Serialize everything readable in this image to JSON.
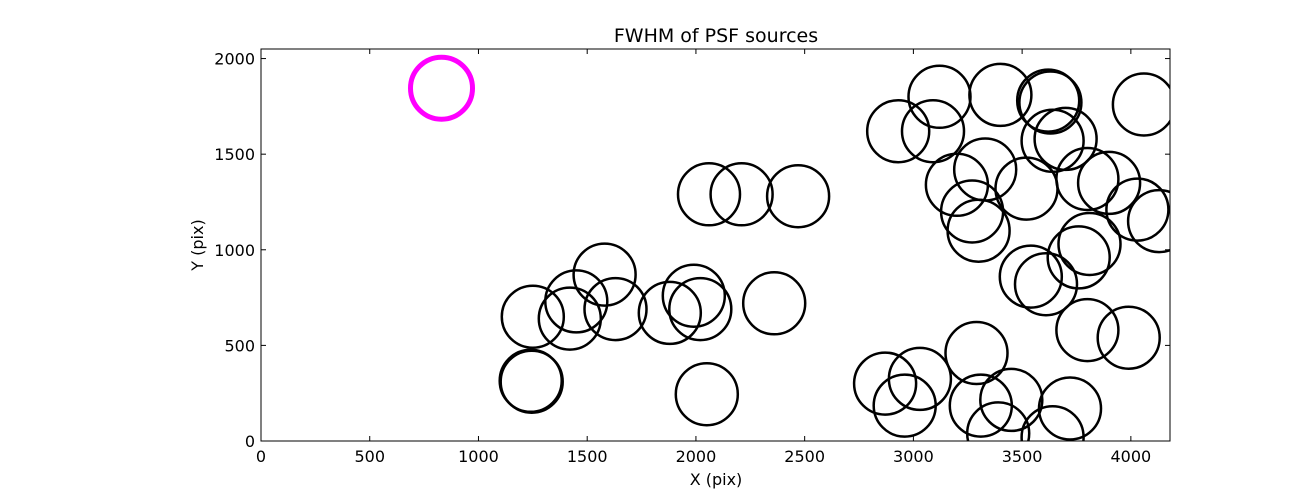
{
  "chart_data": {
    "type": "scatter",
    "title": "FWHM of PSF sources",
    "xlabel": "X (pix)",
    "ylabel": "Y (pix)",
    "xlim": [
      0,
      4180
    ],
    "ylim": [
      0,
      2050
    ],
    "xticks": [
      0,
      500,
      1000,
      1500,
      2000,
      2500,
      3000,
      3500,
      4000
    ],
    "yticks": [
      0,
      500,
      1000,
      1500,
      2000
    ],
    "grid": false,
    "marker": "circle",
    "series": [
      {
        "color": "#000000",
        "points": [
          [
            1240,
            315
          ],
          [
            1245,
            310
          ],
          [
            1250,
            650
          ],
          [
            1420,
            640
          ],
          [
            1450,
            730
          ],
          [
            1580,
            870
          ],
          [
            1630,
            690
          ],
          [
            1880,
            670
          ],
          [
            1990,
            760
          ],
          [
            2020,
            690
          ],
          [
            2060,
            1290
          ],
          [
            2210,
            1290
          ],
          [
            2470,
            1280
          ],
          [
            2360,
            720
          ],
          [
            2050,
            245
          ],
          [
            2870,
            300
          ],
          [
            2960,
            185
          ],
          [
            3030,
            325
          ],
          [
            2930,
            1620
          ],
          [
            3090,
            1620
          ],
          [
            3120,
            1800
          ],
          [
            3200,
            1340
          ],
          [
            3270,
            1200
          ],
          [
            3330,
            1420
          ],
          [
            3300,
            1100
          ],
          [
            3400,
            1810
          ],
          [
            3620,
            1780
          ],
          [
            3630,
            1770
          ],
          [
            3640,
            1570
          ],
          [
            3700,
            1580
          ],
          [
            3520,
            1320
          ],
          [
            3800,
            1370
          ],
          [
            3900,
            1350
          ],
          [
            4030,
            1210
          ],
          [
            4060,
            1760
          ],
          [
            4130,
            1150
          ],
          [
            3540,
            860
          ],
          [
            3610,
            820
          ],
          [
            3760,
            960
          ],
          [
            3810,
            1030
          ],
          [
            3800,
            580
          ],
          [
            3990,
            540
          ],
          [
            3290,
            460
          ],
          [
            3310,
            185
          ],
          [
            3450,
            215
          ],
          [
            3390,
            40
          ],
          [
            3640,
            20
          ],
          [
            3720,
            170
          ]
        ]
      },
      {
        "color": "#ff00ff",
        "points": [
          [
            830,
            1845
          ]
        ]
      }
    ]
  }
}
